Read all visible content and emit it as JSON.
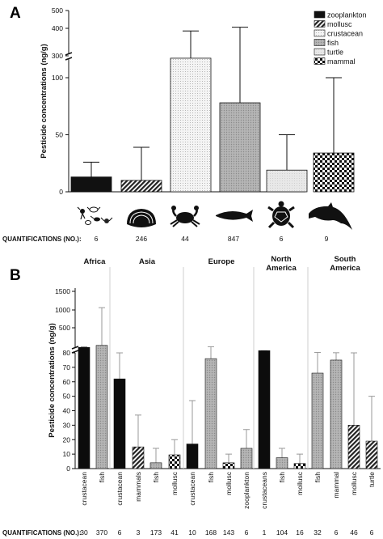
{
  "chart_data": [
    {
      "type": "bar",
      "panel": "A",
      "ylabel": "Pesticide concentrations (ng/g)",
      "y_axis_break": {
        "lower_range": [
          0,
          100
        ],
        "upper_range": [
          100,
          500
        ]
      },
      "ticks_lower": [
        0,
        50,
        100
      ],
      "ticks_upper": [
        300,
        400,
        500
      ],
      "categories": [
        "zooplankton",
        "mollusc",
        "crustacean",
        "fish",
        "turtle",
        "mammal"
      ],
      "values": [
        13,
        10,
        105,
        78,
        19,
        34
      ],
      "error_upper": [
        26,
        39,
        385,
        406,
        50,
        100
      ],
      "legend": [
        "zooplankton",
        "mollusc",
        "crustacean",
        "fish",
        "turtle",
        "mammal"
      ],
      "legend_position": "top-right",
      "colors": {
        "zooplankton": "#111111",
        "mollusc": "#3a3a3a",
        "crustacean": "#f2f2f2",
        "fish": "#b8b8b8",
        "turtle": "#e6e6e6",
        "mammal": "#2a2a2a"
      },
      "quantifications_label": "QUANTIFICATIONS (NO.):",
      "quantifications": [
        "6",
        "246",
        "44",
        "847",
        "6",
        "9"
      ],
      "icons": [
        "plankton-icon",
        "clam-icon",
        "crab-icon",
        "fish-icon",
        "turtle-icon",
        "dolphin-icon"
      ]
    },
    {
      "type": "bar",
      "panel": "B",
      "ylabel": "Pesticide concentrations (ng/g)",
      "y_axis_break": {
        "lower_range": [
          0,
          80
        ],
        "upper_range": [
          80,
          1500
        ]
      },
      "ticks_lower": [
        0,
        10,
        20,
        30,
        40,
        50,
        60,
        70,
        80
      ],
      "ticks_upper": [
        500,
        1000,
        1500
      ],
      "regions": [
        {
          "name": "Africa",
          "bars": [
            0,
            1
          ]
        },
        {
          "name": "Asia",
          "bars": [
            2,
            3,
            4,
            5
          ]
        },
        {
          "name": "Europe",
          "bars": [
            6,
            7,
            8,
            9
          ]
        },
        {
          "name": "North America",
          "bars": [
            10,
            11,
            12
          ]
        },
        {
          "name": "South America",
          "bars": [
            13,
            14,
            15,
            16
          ]
        }
      ],
      "categories": [
        "crustacean",
        "fish",
        "crustacean",
        "mammals",
        "fish",
        "mollusc",
        "crustacean",
        "fish",
        "mollusc",
        "zooplankton",
        "crustaceans",
        "fish",
        "mollusc",
        "fish",
        "mammal",
        "mollusc",
        "turtle"
      ],
      "group": [
        "crustacean",
        "fish",
        "crustacean",
        "mammal",
        "fish",
        "mollusc",
        "crustacean",
        "fish",
        "mollusc",
        "fish",
        "crustacean",
        "fish",
        "mollusc",
        "fish",
        "fish",
        "mammal",
        "mammal"
      ],
      "values": [
        205,
        250,
        62,
        15,
        4,
        9.5,
        17,
        76,
        4,
        14,
        130,
        7.5,
        3.5,
        66,
        75,
        30,
        19
      ],
      "error_upper": [
        220,
        1110,
        80,
        37,
        14,
        20,
        47,
        220,
        10,
        27,
        130,
        14,
        10,
        90,
        83,
        80,
        50
      ],
      "quantifications_label": "QUANTIFICATIONS (NO.):",
      "quantifications": [
        "30",
        "370",
        "6",
        "3",
        "173",
        "41",
        "10",
        "168",
        "143",
        "6",
        "1",
        "104",
        "16",
        "32",
        "6",
        "46",
        "6"
      ]
    }
  ],
  "colors": {
    "crustacean": "#0c0c0c",
    "fish": "#a9a9a9",
    "mammal": "#1f1f1f",
    "mollusc": "#1a1a1a"
  }
}
